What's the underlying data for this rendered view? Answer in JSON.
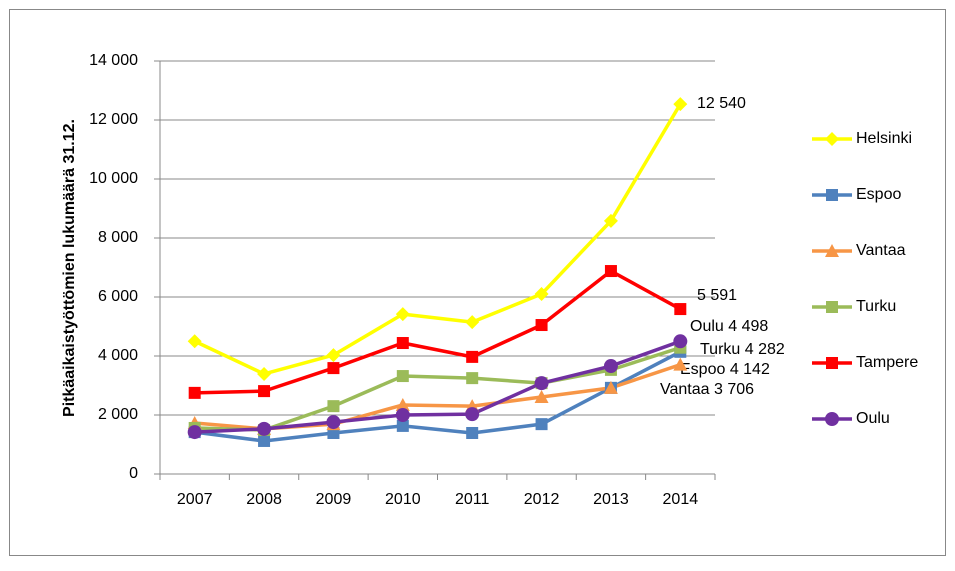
{
  "chart_data": {
    "type": "line",
    "y_label": "Pitkäaikaistyöttömien lukumäärä 31.12.",
    "categories": [
      "2007",
      "2008",
      "2009",
      "2010",
      "2011",
      "2012",
      "2013",
      "2014"
    ],
    "ylim": [
      0,
      14000
    ],
    "yticks": [
      0,
      {
        "value": 2000,
        "label": "2 000"
      },
      {
        "value": 4000,
        "label": "4 000"
      },
      {
        "value": 6000,
        "label": "6 000"
      },
      {
        "value": 8000,
        "label": "8 000"
      },
      {
        "value": 10000,
        "label": "10 000"
      },
      {
        "value": 12000,
        "label": "12 000"
      },
      {
        "value": 14000,
        "label": "14 000"
      }
    ],
    "grid": true,
    "legend": "right",
    "series": [
      {
        "name": "Helsinki",
        "color": "#ffff00",
        "marker": "diamond",
        "values": [
          4500,
          3390,
          4030,
          5420,
          5150,
          6100,
          8580,
          12540
        ],
        "value_labels": [
          null,
          null,
          null,
          null,
          null,
          null,
          null,
          "12 540"
        ]
      },
      {
        "name": "Espoo",
        "color": "#4f81bd",
        "marker": "square",
        "values": [
          1420,
          1120,
          1390,
          1630,
          1390,
          1690,
          2920,
          4142
        ],
        "value_labels": [
          null,
          null,
          null,
          null,
          null,
          null,
          null,
          "Espoo 4 142"
        ]
      },
      {
        "name": "Vantaa",
        "color": "#f79646",
        "marker": "triangle",
        "values": [
          1730,
          1530,
          1690,
          2340,
          2300,
          2610,
          2920,
          3706
        ],
        "value_labels": [
          null,
          null,
          null,
          null,
          null,
          null,
          null,
          "Vantaa 3 706"
        ]
      },
      {
        "name": "Turku",
        "color": "#9bbb59",
        "marker": "square",
        "values": [
          1560,
          1490,
          2300,
          3320,
          3250,
          3080,
          3530,
          4282
        ],
        "value_labels": [
          null,
          null,
          null,
          null,
          null,
          null,
          null,
          "Turku 4 282"
        ]
      },
      {
        "name": "Tampere",
        "color": "#ff0000",
        "marker": "square",
        "values": [
          2750,
          2810,
          3590,
          4440,
          3970,
          5050,
          6880,
          5591
        ],
        "value_labels": [
          null,
          null,
          null,
          null,
          null,
          null,
          null,
          "5 591"
        ]
      },
      {
        "name": "Oulu",
        "color": "#7030a0",
        "marker": "circle",
        "values": [
          1420,
          1530,
          1760,
          2000,
          2030,
          3080,
          3660,
          4498
        ],
        "value_labels": [
          null,
          null,
          null,
          null,
          null,
          null,
          null,
          "Oulu 4 498"
        ]
      }
    ]
  }
}
